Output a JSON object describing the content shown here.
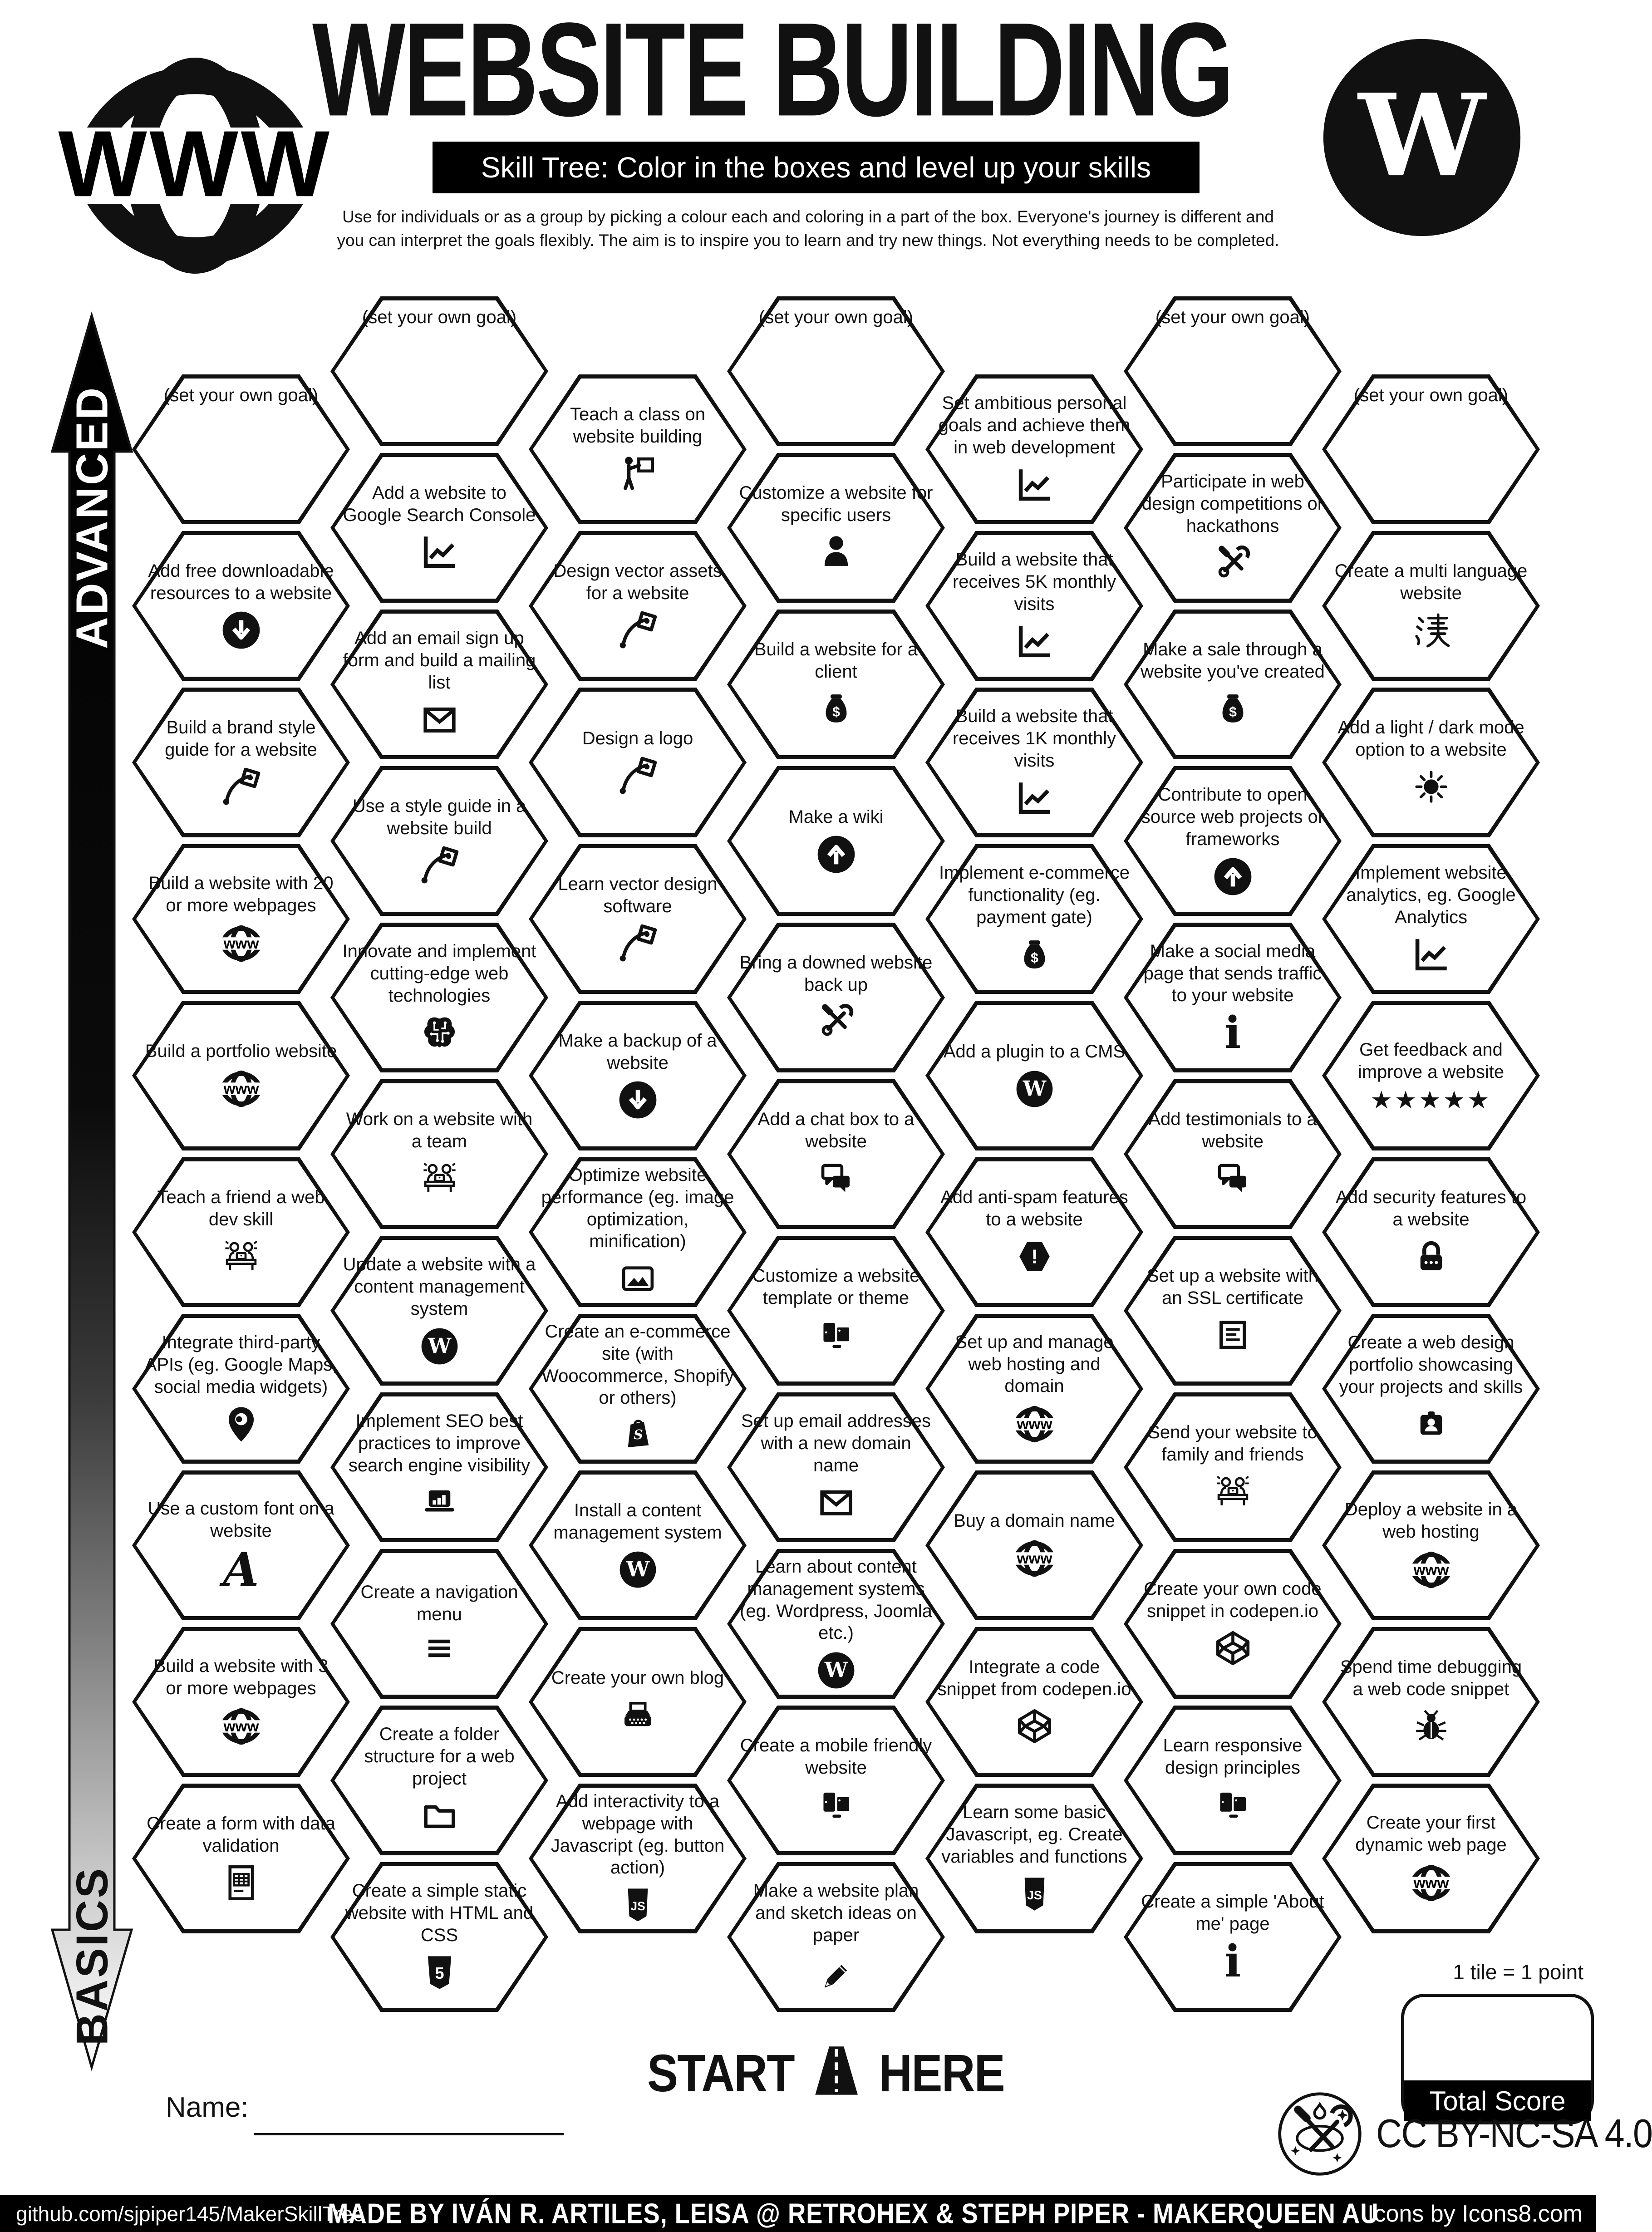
{
  "header": {
    "title": "WEBSITE BUILDING",
    "subtitle": "Skill Tree:  Color in the boxes and level up your skills",
    "description": "Use for individuals or as a group by picking a colour each and coloring in a part of the box.  Everyone's journey is different and you can interpret the goals flexibly.  The aim is to inspire you to learn and try new things. Not everything needs to be completed.",
    "logo_left": "www-globe-icon",
    "logo_right": "wordpress-icon"
  },
  "axis": {
    "top_label": "ADVANCED",
    "bottom_label": "BASICS"
  },
  "footer": {
    "start_left": "START",
    "start_right": "HERE",
    "name_label": "Name:",
    "tile_note": "1 tile = 1 point",
    "total_score_label": "Total Score",
    "license": "CC BY-NC-SA 4.0",
    "credit_left": "github.com/sjpiper145/MakerSkillTree",
    "credit_center": "MADE BY IVÁN R. ARTILES, LEISA @ RETROHEX  & STEPH PIPER  -  MAKERQUEEN AU",
    "credit_right": "Icons by Icons8.com"
  },
  "colors": {
    "ink": "#111111",
    "paper": "#ffffff"
  },
  "hexes": [
    {
      "col": 0,
      "row": 0,
      "goal": true,
      "label": "(set your own goal)",
      "icon": null
    },
    {
      "col": 0,
      "row": 1,
      "label": "Add free downloadable resources to a website",
      "icon": "download-circle"
    },
    {
      "col": 0,
      "row": 2,
      "label": "Build a brand style guide for a website",
      "icon": "vector-pen"
    },
    {
      "col": 0,
      "row": 3,
      "label": "Build a website with 20 or more webpages",
      "icon": "globe-www"
    },
    {
      "col": 0,
      "row": 4,
      "label": "Build a portfolio website",
      "icon": "globe-www"
    },
    {
      "col": 0,
      "row": 5,
      "label": "Teach a friend a web dev skill",
      "icon": "team-desk"
    },
    {
      "col": 0,
      "row": 6,
      "label": "Integrate third-party APIs (eg. Google Maps, social media widgets)",
      "icon": "map-pin"
    },
    {
      "col": 0,
      "row": 7,
      "label": "Use a custom font on a website",
      "icon": "cursive-a"
    },
    {
      "col": 0,
      "row": 8,
      "label": "Build a website with 3 or more webpages",
      "icon": "globe-www"
    },
    {
      "col": 0,
      "row": 9,
      "label": "Create a form with data validation",
      "icon": "form-sheet"
    },
    {
      "col": 1,
      "row": 0,
      "goal": true,
      "label": "(set your own goal)",
      "icon": null
    },
    {
      "col": 1,
      "row": 1,
      "label": "Add a website to Google Search Console",
      "icon": "chart-line"
    },
    {
      "col": 1,
      "row": 2,
      "label": "Add an email sign up form and build a mailing list",
      "icon": "envelope"
    },
    {
      "col": 1,
      "row": 3,
      "label": "Use a style guide in a website build",
      "icon": "vector-pen"
    },
    {
      "col": 1,
      "row": 4,
      "label": "Innovate and implement cutting-edge web technologies",
      "icon": "brain-circuit"
    },
    {
      "col": 1,
      "row": 5,
      "label": "Work on a website with a team",
      "icon": "team-desk"
    },
    {
      "col": 1,
      "row": 6,
      "label": "Update a website with a content management system",
      "icon": "wordpress"
    },
    {
      "col": 1,
      "row": 7,
      "label": "Implement SEO best practices to improve search engine visibility",
      "icon": "laptop-chart"
    },
    {
      "col": 1,
      "row": 8,
      "label": "Create a navigation menu",
      "icon": "menu-bars"
    },
    {
      "col": 1,
      "row": 9,
      "label": "Create a folder structure for a web project",
      "icon": "folder"
    },
    {
      "col": 1,
      "row": 10,
      "label": "Create a simple static website with HTML and CSS",
      "icon": "html5-badge"
    },
    {
      "col": 2,
      "row": 0,
      "label": "Teach a class on website building",
      "icon": "teacher-board"
    },
    {
      "col": 2,
      "row": 1,
      "label": "Design vector assets for a website",
      "icon": "vector-pen"
    },
    {
      "col": 2,
      "row": 2,
      "label": "Design a logo",
      "icon": "vector-pen"
    },
    {
      "col": 2,
      "row": 3,
      "label": "Learn vector design software",
      "icon": "vector-pen"
    },
    {
      "col": 2,
      "row": 4,
      "label": "Make a backup of a website",
      "icon": "download-circle"
    },
    {
      "col": 2,
      "row": 5,
      "label": "Optimize website performance (eg. image optimization, minification)",
      "icon": "image-photo"
    },
    {
      "col": 2,
      "row": 6,
      "label": "Create an e-commerce site (with Woocommerce, Shopify or others)",
      "icon": "shopify-bag"
    },
    {
      "col": 2,
      "row": 7,
      "label": "Install a content management system",
      "icon": "wordpress"
    },
    {
      "col": 2,
      "row": 8,
      "label": "Create your own blog",
      "icon": "typewriter"
    },
    {
      "col": 2,
      "row": 9,
      "label": "Add interactivity to a webpage with Javascript (eg. button action)",
      "icon": "js-badge"
    },
    {
      "col": 3,
      "row": 0,
      "goal": true,
      "label": "(set your own goal)",
      "icon": null
    },
    {
      "col": 3,
      "row": 1,
      "label": "Customize a website for specific users",
      "icon": "person"
    },
    {
      "col": 3,
      "row": 2,
      "label": "Build a website for a client",
      "icon": "money-bag"
    },
    {
      "col": 3,
      "row": 3,
      "label": "Make a wiki",
      "icon": "up-circle"
    },
    {
      "col": 3,
      "row": 4,
      "label": "Bring a downed website back up",
      "icon": "tools"
    },
    {
      "col": 3,
      "row": 5,
      "label": "Add a chat box to a website",
      "icon": "chat-bubbles"
    },
    {
      "col": 3,
      "row": 6,
      "label": "Customize a website template or theme",
      "icon": "screens"
    },
    {
      "col": 3,
      "row": 7,
      "label": "Set up email addresses with a new domain name",
      "icon": "envelope"
    },
    {
      "col": 3,
      "row": 8,
      "label": "Learn about content management systems (eg. Wordpress, Joomla etc.)",
      "icon": "wordpress"
    },
    {
      "col": 3,
      "row": 9,
      "label": "Create a mobile friendly website",
      "icon": "screens"
    },
    {
      "col": 3,
      "row": 10,
      "label": "Make a website plan and sketch ideas on paper",
      "icon": "pencil"
    },
    {
      "col": 4,
      "row": 0,
      "label": "Set ambitious personal goals and achieve them in web development",
      "icon": "chart-line"
    },
    {
      "col": 4,
      "row": 1,
      "label": "Build a website that receives 5K monthly visits",
      "icon": "chart-line"
    },
    {
      "col": 4,
      "row": 2,
      "label": "Build a website that receives 1K monthly visits",
      "icon": "chart-line"
    },
    {
      "col": 4,
      "row": 3,
      "label": "Implement e-commerce functionality (eg. payment gate)",
      "icon": "money-bag"
    },
    {
      "col": 4,
      "row": 4,
      "label": "Add a plugin to a CMS",
      "icon": "wordpress"
    },
    {
      "col": 4,
      "row": 5,
      "label": "Add anti-spam features to a website",
      "icon": "spam-alert"
    },
    {
      "col": 4,
      "row": 6,
      "label": "Set up and manage web hosting and domain",
      "icon": "globe-www"
    },
    {
      "col": 4,
      "row": 7,
      "label": "Buy a domain name",
      "icon": "globe-www"
    },
    {
      "col": 4,
      "row": 8,
      "label": "Integrate a code snippet from codepen.io",
      "icon": "codepen"
    },
    {
      "col": 4,
      "row": 9,
      "label": "Learn some basic Javascript, eg. Create variables and functions",
      "icon": "js-badge"
    },
    {
      "col": 5,
      "row": 0,
      "goal": true,
      "label": "(set your own goal)",
      "icon": null
    },
    {
      "col": 5,
      "row": 1,
      "label": "Participate in web design competitions or hackathons",
      "icon": "tools"
    },
    {
      "col": 5,
      "row": 2,
      "label": "Make a sale through a website you've created",
      "icon": "money-bag"
    },
    {
      "col": 5,
      "row": 3,
      "label": "Contribute to open source web projects or frameworks",
      "icon": "up-circle"
    },
    {
      "col": 5,
      "row": 4,
      "label": "Make a social media page that sends traffic to your website",
      "icon": "info-i"
    },
    {
      "col": 5,
      "row": 5,
      "label": "Add testimonials to a website",
      "icon": "chat-bubbles"
    },
    {
      "col": 5,
      "row": 6,
      "label": "Set up a website with an SSL certificate",
      "icon": "ssl-doc"
    },
    {
      "col": 5,
      "row": 7,
      "label": "Send your website to family and friends",
      "icon": "team-desk"
    },
    {
      "col": 5,
      "row": 8,
      "label": "Create your own code snippet in codepen.io",
      "icon": "codepen"
    },
    {
      "col": 5,
      "row": 9,
      "label": "Learn responsive design principles",
      "icon": "screens"
    },
    {
      "col": 5,
      "row": 10,
      "label": "Create a simple 'About me' page",
      "icon": "info-i"
    },
    {
      "col": 6,
      "row": 0,
      "goal": true,
      "label": "(set your own goal)",
      "icon": null
    },
    {
      "col": 6,
      "row": 1,
      "label": "Create a multi language website",
      "icon": "han-char"
    },
    {
      "col": 6,
      "row": 2,
      "label": "Add a light / dark mode option to a website",
      "icon": "sun"
    },
    {
      "col": 6,
      "row": 3,
      "label": "Implement website analytics, eg. Google Analytics",
      "icon": "chart-line"
    },
    {
      "col": 6,
      "row": 4,
      "label": "Get feedback and improve a website",
      "icon": "stars-five"
    },
    {
      "col": 6,
      "row": 5,
      "label": "Add security features to a website",
      "icon": "padlock"
    },
    {
      "col": 6,
      "row": 6,
      "label": "Create a web design portfolio showcasing your projects and skills",
      "icon": "id-badge"
    },
    {
      "col": 6,
      "row": 7,
      "label": "Deploy a website in a web hosting",
      "icon": "globe-www"
    },
    {
      "col": 6,
      "row": 8,
      "label": "Spend time debugging a web code snippet",
      "icon": "bug"
    },
    {
      "col": 6,
      "row": 9,
      "label": "Create your first dynamic web page",
      "icon": "globe-www"
    }
  ]
}
